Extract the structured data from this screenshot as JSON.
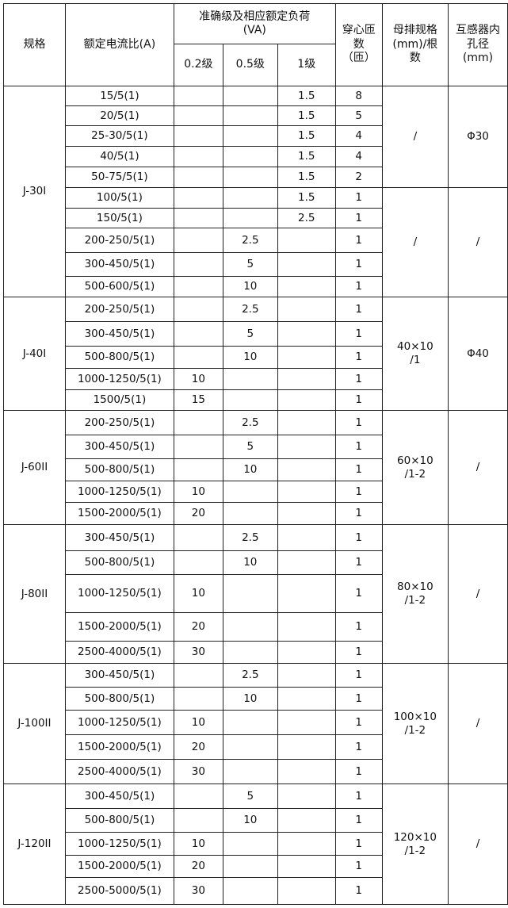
{
  "header": {
    "model": "规格",
    "ratio": "额定电流比(A)",
    "accuracy": "准确级及相应额定负荷(VA)",
    "class_02": "0.2级",
    "class_05": "0.5级",
    "class_1": "1级",
    "turns": "穿心匝数（匝）",
    "busbar": "母排规格(mm)/根数",
    "bore": "互感器内孔径(mm)"
  },
  "groups": [
    {
      "model": "J-30I",
      "rows": [
        {
          "ratio": "15/5(1)",
          "c02": "",
          "c05": "",
          "c1": "1.5",
          "turns": "8"
        },
        {
          "ratio": "20/5(1)",
          "c02": "",
          "c05": "",
          "c1": "1.5",
          "turns": "5"
        },
        {
          "ratio": "25-30/5(1)",
          "c02": "",
          "c05": "",
          "c1": "1.5",
          "turns": "4"
        },
        {
          "ratio": "40/5(1)",
          "c02": "",
          "c05": "",
          "c1": "1.5",
          "turns": "4"
        },
        {
          "ratio": "50-75/5(1)",
          "c02": "",
          "c05": "",
          "c1": "1.5",
          "turns": "2"
        },
        {
          "ratio": "100/5(1)",
          "c02": "",
          "c05": "",
          "c1": "1.5",
          "turns": "1"
        },
        {
          "ratio": "150/5(1)",
          "c02": "",
          "c05": "",
          "c1": "2.5",
          "turns": "1"
        },
        {
          "ratio": "200-250/5(1)",
          "c02": "",
          "c05": "2.5",
          "c1": "",
          "turns": "1"
        },
        {
          "ratio": "300-450/5(1)",
          "c02": "",
          "c05": "5",
          "c1": "",
          "turns": "1"
        },
        {
          "ratio": "500-600/5(1)",
          "c02": "",
          "c05": "10",
          "c1": "",
          "turns": "1"
        }
      ],
      "busbar": [
        {
          "text": "/",
          "span": 5
        },
        {
          "text": "/",
          "span": 5
        }
      ],
      "bore": [
        {
          "text": "Φ30",
          "span": 5
        },
        {
          "text": "/",
          "span": 5
        }
      ]
    },
    {
      "model": "J-40I",
      "rows": [
        {
          "ratio": "200-250/5(1)",
          "c02": "",
          "c05": "2.5",
          "c1": "",
          "turns": "1"
        },
        {
          "ratio": "300-450/5(1)",
          "c02": "",
          "c05": "5",
          "c1": "",
          "turns": "1"
        },
        {
          "ratio": "500-800/5(1)",
          "c02": "",
          "c05": "10",
          "c1": "",
          "turns": "1"
        },
        {
          "ratio": "1000-1250/5(1)",
          "c02": "10",
          "c05": "",
          "c1": "",
          "turns": "1"
        },
        {
          "ratio": "1500/5(1)",
          "c02": "15",
          "c05": "",
          "c1": "",
          "turns": "1"
        }
      ],
      "busbar": [
        {
          "text": "40×10 /1",
          "span": 5
        }
      ],
      "bore": [
        {
          "text": "Φ40",
          "span": 5
        }
      ]
    },
    {
      "model": "J-60II",
      "rows": [
        {
          "ratio": "200-250/5(1)",
          "c02": "",
          "c05": "2.5",
          "c1": "",
          "turns": "1"
        },
        {
          "ratio": "300-450/5(1)",
          "c02": "",
          "c05": "5",
          "c1": "",
          "turns": "1"
        },
        {
          "ratio": "500-800/5(1)",
          "c02": "",
          "c05": "10",
          "c1": "",
          "turns": "1"
        },
        {
          "ratio": "1000-1250/5(1)",
          "c02": "10",
          "c05": "",
          "c1": "",
          "turns": "1"
        },
        {
          "ratio": "1500-2000/5(1)",
          "c02": "20",
          "c05": "",
          "c1": "",
          "turns": "1"
        }
      ],
      "busbar": [
        {
          "text": "60×10 /1-2",
          "span": 5
        }
      ],
      "bore": [
        {
          "text": "/",
          "span": 5
        }
      ]
    },
    {
      "model": "J-80II",
      "rows": [
        {
          "ratio": "300-450/5(1)",
          "c02": "",
          "c05": "2.5",
          "c1": "",
          "turns": "1"
        },
        {
          "ratio": "500-800/5(1)",
          "c02": "",
          "c05": "10",
          "c1": "",
          "turns": "1"
        },
        {
          "ratio": "1000-1250/5(1)",
          "c02": "10",
          "c05": "",
          "c1": "",
          "turns": "1"
        },
        {
          "ratio": "1500-2000/5(1)",
          "c02": "20",
          "c05": "",
          "c1": "",
          "turns": "1"
        },
        {
          "ratio": "2500-4000/5(1)",
          "c02": "30",
          "c05": "",
          "c1": "",
          "turns": "1"
        }
      ],
      "busbar": [
        {
          "text": "80×10 /1-2",
          "span": 5
        }
      ],
      "bore": [
        {
          "text": "/",
          "span": 5
        }
      ]
    },
    {
      "model": "J-100II",
      "rows": [
        {
          "ratio": "300-450/5(1)",
          "c02": "",
          "c05": "2.5",
          "c1": "",
          "turns": "1"
        },
        {
          "ratio": "500-800/5(1)",
          "c02": "",
          "c05": "10",
          "c1": "",
          "turns": "1"
        },
        {
          "ratio": "1000-1250/5(1)",
          "c02": "10",
          "c05": "",
          "c1": "",
          "turns": "1"
        },
        {
          "ratio": "1500-2000/5(1)",
          "c02": "20",
          "c05": "",
          "c1": "",
          "turns": "1"
        },
        {
          "ratio": "2500-4000/5(1)",
          "c02": "30",
          "c05": "",
          "c1": "",
          "turns": "1"
        }
      ],
      "busbar": [
        {
          "text": "100×10 /1-2",
          "span": 5
        }
      ],
      "bore": [
        {
          "text": "/",
          "span": 5
        }
      ]
    },
    {
      "model": "J-120II",
      "rows": [
        {
          "ratio": "300-450/5(1)",
          "c02": "",
          "c05": "5",
          "c1": "",
          "turns": "1"
        },
        {
          "ratio": "500-800/5(1)",
          "c02": "",
          "c05": "10",
          "c1": "",
          "turns": "1"
        },
        {
          "ratio": "1000-1250/5(1)",
          "c02": "10",
          "c05": "",
          "c1": "",
          "turns": "1"
        },
        {
          "ratio": "1500-2000/5(1)",
          "c02": "20",
          "c05": "",
          "c1": "",
          "turns": "1"
        },
        {
          "ratio": "2500-5000/5(1)",
          "c02": "30",
          "c05": "",
          "c1": "",
          "turns": "1"
        }
      ],
      "busbar": [
        {
          "text": "120×10 /1-2",
          "span": 5
        }
      ],
      "bore": [
        {
          "text": "/",
          "span": 5
        }
      ]
    }
  ]
}
